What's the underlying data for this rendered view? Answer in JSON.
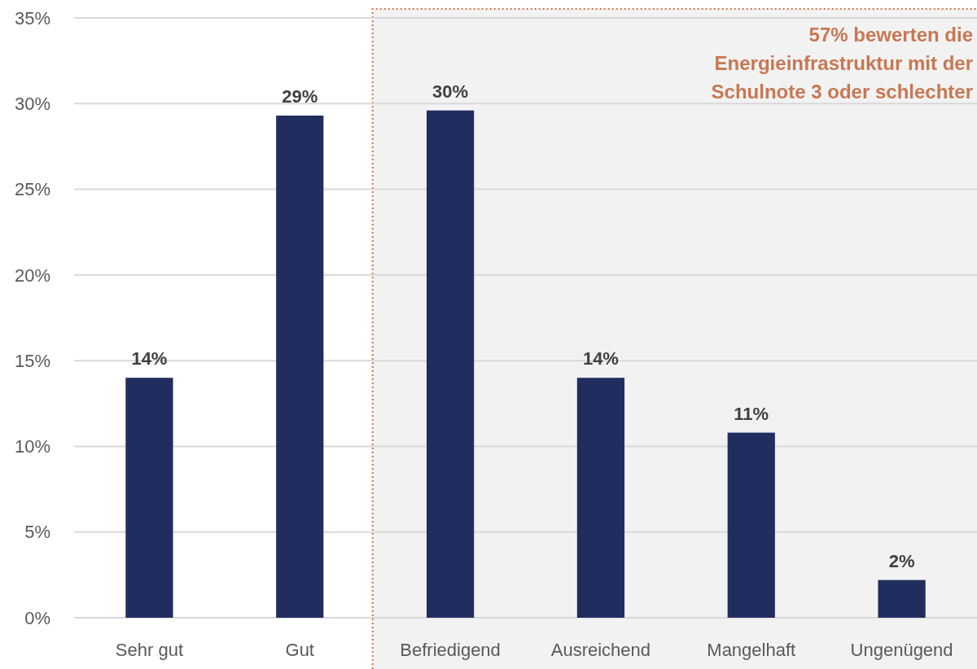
{
  "chart_data": {
    "type": "bar",
    "categories": [
      "Sehr gut",
      "Gut",
      "Befriedigend",
      "Ausreichend",
      "Mangelhaft",
      "Ungenügend"
    ],
    "values": [
      14,
      29.3,
      29.6,
      14,
      10.8,
      2.2
    ],
    "value_labels": [
      "14%",
      "29%",
      "30%",
      "14%",
      "11%",
      "2%"
    ],
    "color": "#222d5f",
    "ylim": [
      0,
      35
    ],
    "yticks": [
      {
        "value": 0,
        "label": "0%"
      },
      {
        "value": 5,
        "label": "5%"
      },
      {
        "value": 10,
        "label": "10%"
      },
      {
        "value": 15,
        "label": "15%"
      },
      {
        "value": 20,
        "label": "20%"
      },
      {
        "value": 25,
        "label": "25%"
      },
      {
        "value": 30,
        "label": "30%"
      },
      {
        "value": 35,
        "label": "35%"
      }
    ],
    "grid": "y",
    "bands": [
      {
        "axis": "x",
        "from": "Befriedigend",
        "to": "Ungenügend",
        "label": "57% bewerten die Energieinfrastruktur mit der Schulnote 3 oder schlechter",
        "color": "#f2f2f2"
      }
    ]
  }
}
